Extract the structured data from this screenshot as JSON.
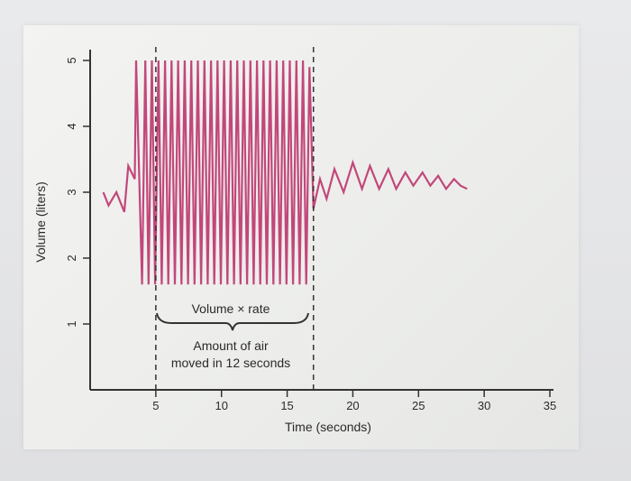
{
  "chart_data": {
    "type": "line",
    "xlabel": "Time (seconds)",
    "ylabel": "Volume (liters)",
    "xlim": [
      0,
      35
    ],
    "ylim": [
      0,
      5
    ],
    "x_ticks": [
      5,
      10,
      15,
      20,
      25,
      30,
      35
    ],
    "y_ticks": [
      1,
      2,
      3,
      4,
      5
    ],
    "grid": false,
    "series": [
      {
        "color": "#c2477a",
        "x": [
          1.0,
          1.4,
          2.0,
          2.6,
          2.9,
          3.4,
          3.5,
          3.95,
          4.2,
          4.45,
          4.7,
          4.95,
          5.2,
          5.45,
          5.7,
          5.95,
          6.2,
          6.45,
          6.7,
          6.95,
          7.2,
          7.45,
          7.7,
          7.95,
          8.2,
          8.45,
          8.7,
          8.95,
          9.2,
          9.45,
          9.7,
          9.95,
          10.2,
          10.45,
          10.7,
          10.95,
          11.2,
          11.45,
          11.7,
          11.95,
          12.2,
          12.45,
          12.7,
          12.95,
          13.2,
          13.45,
          13.7,
          13.95,
          14.2,
          14.45,
          14.7,
          14.95,
          15.2,
          15.45,
          15.7,
          15.95,
          16.2,
          16.45,
          16.7,
          17.0,
          17.5,
          18.0,
          18.6,
          19.3,
          20.0,
          20.7,
          21.3,
          22.0,
          22.7,
          23.3,
          24.0,
          24.6,
          25.3,
          25.9,
          26.5,
          27.1,
          27.7,
          28.2,
          28.7
        ],
        "y": [
          3.0,
          2.8,
          3.0,
          2.7,
          3.4,
          3.2,
          5.0,
          1.6,
          5.0,
          1.6,
          5.0,
          1.6,
          5.0,
          1.6,
          5.0,
          1.6,
          5.0,
          1.6,
          5.0,
          1.6,
          5.0,
          1.6,
          5.0,
          1.6,
          5.0,
          1.6,
          5.0,
          1.6,
          5.0,
          1.6,
          5.0,
          1.6,
          5.0,
          1.6,
          5.0,
          1.6,
          5.0,
          1.6,
          5.0,
          1.6,
          5.0,
          1.6,
          5.0,
          1.6,
          5.0,
          1.6,
          5.0,
          1.6,
          5.0,
          1.6,
          5.0,
          1.6,
          5.0,
          1.6,
          5.0,
          1.6,
          5.0,
          1.6,
          4.9,
          2.75,
          3.2,
          2.9,
          3.35,
          3.0,
          3.45,
          3.05,
          3.4,
          3.05,
          3.35,
          3.05,
          3.3,
          3.1,
          3.3,
          3.1,
          3.25,
          3.05,
          3.2,
          3.1,
          3.05
        ]
      }
    ],
    "dashed_markers_x": [
      5.0,
      17.0
    ],
    "annotations": [
      {
        "text": "Volume × rate"
      },
      {
        "text": "Amount of air"
      },
      {
        "text": "moved in 12 seconds"
      }
    ],
    "colors": {
      "trace": "#c2477a",
      "axis": "#333333",
      "text": "#2a2a2a"
    }
  }
}
